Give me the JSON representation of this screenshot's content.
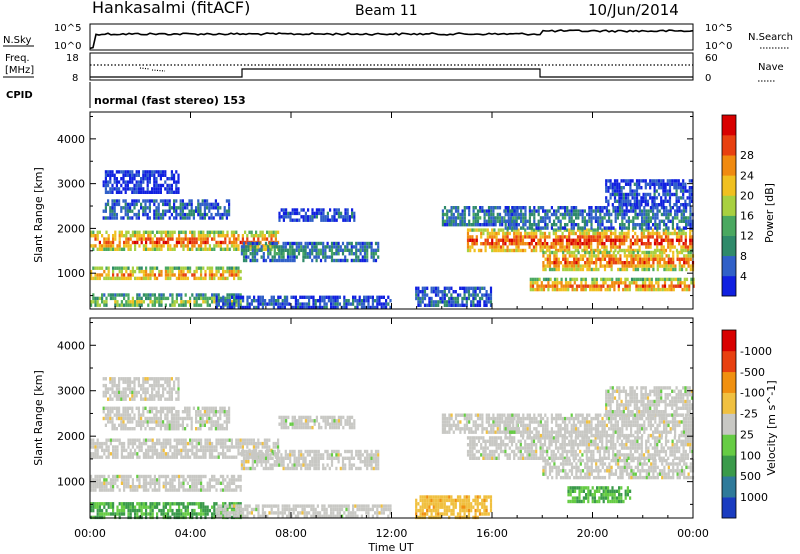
{
  "header": {
    "station": "Hankasalmi (fitACF)",
    "beam": "Beam 11",
    "date": "10/Jun/2014"
  },
  "panels": {
    "nsky": {
      "label": "N.Sky",
      "left_tick_top": "10^5",
      "left_tick_bottom": "10^0",
      "right_label": "N.Search",
      "right_tick_top": "10^5",
      "right_tick_bottom": "10^0"
    },
    "freq": {
      "label_line1": "Freq.",
      "label_line2": "[MHz]",
      "tick_top": "18",
      "tick_bottom": "8",
      "right_label": "Nave",
      "right_tick_top": "60",
      "right_tick_bottom": "0"
    },
    "cpid": {
      "label": "CPID",
      "text": "normal (fast stereo) 153"
    }
  },
  "chart_data": [
    {
      "type": "heatmap",
      "title": "",
      "xlabel": "",
      "ylabel": "Slant Range [km]",
      "x_ticks": [
        "00:00",
        "04:00",
        "08:00",
        "12:00",
        "16:00",
        "20:00",
        "00:00"
      ],
      "x_hours": [
        0,
        4,
        8,
        12,
        16,
        20,
        24
      ],
      "y_ticks": [
        1000,
        2000,
        3000,
        4000
      ],
      "ylim": [
        200,
        4600
      ],
      "xlim": [
        0,
        24
      ],
      "colorbar": {
        "label": "Power [dB]",
        "ticks": [
          "4",
          "8",
          "12",
          "16",
          "20",
          "24",
          "28"
        ],
        "colors": [
          "#1020e0",
          "#3060c8",
          "#2f8a6a",
          "#4aa860",
          "#a8d040",
          "#f0c020",
          "#f08a10",
          "#e84010",
          "#d80000"
        ]
      },
      "bands": [
        {
          "t0": 0.0,
          "t1": 7.5,
          "r0": 1550,
          "r1": 1950,
          "level": 0.85
        },
        {
          "t0": 0.0,
          "t1": 6.0,
          "r0": 850,
          "r1": 1150,
          "level": 0.75
        },
        {
          "t0": 0.0,
          "t1": 6.0,
          "r0": 250,
          "r1": 550,
          "level": 0.5
        },
        {
          "t0": 0.5,
          "t1": 5.5,
          "r0": 2200,
          "r1": 2650,
          "level": 0.2
        },
        {
          "t0": 6.0,
          "t1": 11.5,
          "r0": 1300,
          "r1": 1700,
          "level": 0.3
        },
        {
          "t0": 7.5,
          "t1": 10.5,
          "r0": 2200,
          "r1": 2450,
          "level": 0.15
        },
        {
          "t0": 5.0,
          "t1": 12.0,
          "r0": 250,
          "r1": 500,
          "level": 0.2
        },
        {
          "t0": 14.0,
          "t1": 17.0,
          "r0": 2100,
          "r1": 2500,
          "level": 0.3
        },
        {
          "t0": 12.5,
          "t1": 16.0,
          "r0": 250,
          "r1": 700,
          "level": 0.2
        },
        {
          "t0": 15.0,
          "t1": 24.0,
          "r0": 1500,
          "r1": 2000,
          "level": 0.9
        },
        {
          "t0": 18.0,
          "t1": 24.0,
          "r0": 1100,
          "r1": 1500,
          "level": 0.85
        },
        {
          "t0": 17.5,
          "t1": 24.0,
          "r0": 600,
          "r1": 900,
          "level": 0.8
        },
        {
          "t0": 16.5,
          "t1": 24.0,
          "r0": 2000,
          "r1": 2500,
          "level": 0.25
        },
        {
          "t0": 20.5,
          "t1": 24.0,
          "r0": 2500,
          "r1": 3100,
          "level": 0.15
        },
        {
          "t0": 0.5,
          "t1": 3.5,
          "r0": 2800,
          "r1": 3300,
          "level": 0.08
        }
      ]
    },
    {
      "type": "heatmap",
      "title": "",
      "xlabel": "Time UT",
      "ylabel": "Slant Range [km]",
      "x_ticks": [
        "00:00",
        "04:00",
        "08:00",
        "12:00",
        "16:00",
        "20:00",
        "00:00"
      ],
      "x_hours": [
        0,
        4,
        8,
        12,
        16,
        20,
        24
      ],
      "y_ticks": [
        1000,
        2000,
        3000,
        4000
      ],
      "ylim": [
        200,
        4600
      ],
      "xlim": [
        0,
        24
      ],
      "colorbar": {
        "label": "Velocity [m s^-1]",
        "ticks": [
          "1000",
          "500",
          "100",
          "25",
          "-25",
          "-100",
          "-500",
          "-1000"
        ],
        "colors": [
          "#1a3cc0",
          "#2f7a9a",
          "#3a9a4a",
          "#66cc44",
          "#c8c8c4",
          "#f0c040",
          "#f09010",
          "#e84010",
          "#d80000"
        ]
      },
      "bands": [
        {
          "t0": 0.0,
          "t1": 7.5,
          "r0": 1550,
          "r1": 1950,
          "level": 0.5
        },
        {
          "t0": 0.0,
          "t1": 6.0,
          "r0": 850,
          "r1": 1150,
          "level": 0.5
        },
        {
          "t0": 0.0,
          "t1": 6.0,
          "r0": 250,
          "r1": 550,
          "level": 0.32
        },
        {
          "t0": 0.5,
          "t1": 5.5,
          "r0": 2200,
          "r1": 2650,
          "level": 0.5
        },
        {
          "t0": 6.0,
          "t1": 11.5,
          "r0": 1300,
          "r1": 1700,
          "level": 0.5
        },
        {
          "t0": 7.5,
          "t1": 10.5,
          "r0": 2200,
          "r1": 2450,
          "level": 0.5
        },
        {
          "t0": 5.0,
          "t1": 12.0,
          "r0": 250,
          "r1": 500,
          "level": 0.5
        },
        {
          "t0": 14.0,
          "t1": 17.0,
          "r0": 2100,
          "r1": 2500,
          "level": 0.5
        },
        {
          "t0": 12.5,
          "t1": 16.0,
          "r0": 250,
          "r1": 700,
          "level": 0.62
        },
        {
          "t0": 15.0,
          "t1": 24.0,
          "r0": 1500,
          "r1": 2000,
          "level": 0.5
        },
        {
          "t0": 18.0,
          "t1": 24.0,
          "r0": 1100,
          "r1": 1500,
          "level": 0.5
        },
        {
          "t0": 19.0,
          "t1": 21.5,
          "r0": 600,
          "r1": 900,
          "level": 0.33
        },
        {
          "t0": 16.5,
          "t1": 24.0,
          "r0": 2000,
          "r1": 2500,
          "level": 0.5
        },
        {
          "t0": 20.5,
          "t1": 24.0,
          "r0": 2500,
          "r1": 3100,
          "level": 0.5
        },
        {
          "t0": 0.5,
          "t1": 3.5,
          "r0": 2800,
          "r1": 3300,
          "level": 0.5
        }
      ]
    }
  ]
}
